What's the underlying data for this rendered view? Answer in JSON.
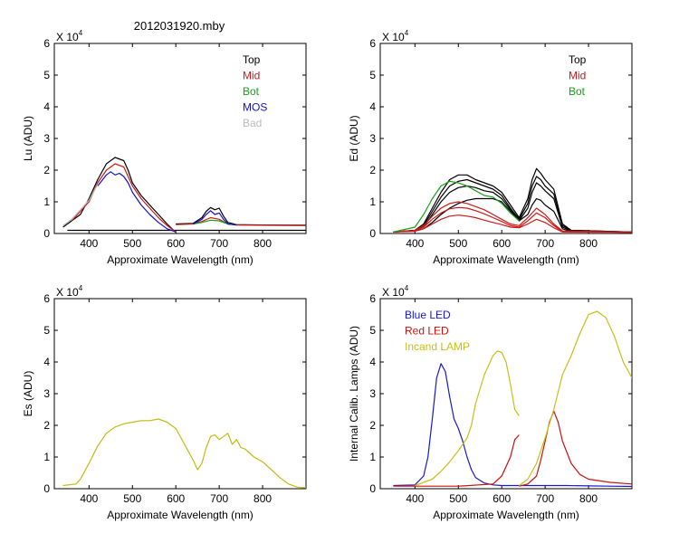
{
  "figure_title": "2012031920.mby",
  "colors": {
    "top": "#000000",
    "mid": "#cc1a1a",
    "bot": "#13a313",
    "mos": "#1111cc",
    "bad": "#bbbbbb",
    "es": "#c2bb12",
    "blue_led": "#1a1acc",
    "red_led": "#cc1111",
    "incand": "#c8c018"
  },
  "chart_data": [
    {
      "id": "lu",
      "type": "line",
      "ylabel": "Lu (ADU)",
      "xlabel": "Approximate Wavelength (nm)",
      "exponent_label": "X 10",
      "exponent": "4",
      "xlim": [
        320,
        900
      ],
      "ylim": [
        0,
        6
      ],
      "xticks": [
        "400",
        "500",
        "600",
        "700",
        "800"
      ],
      "yticks": [
        "0",
        "1",
        "2",
        "3",
        "4",
        "5",
        "6"
      ],
      "legend": [
        {
          "label": "Top",
          "key": "top"
        },
        {
          "label": "Mid",
          "key": "mid"
        },
        {
          "label": "Bot",
          "key": "bot"
        },
        {
          "label": "MOS",
          "key": "mos"
        },
        {
          "label": "Bad",
          "key": "bad"
        }
      ],
      "series": [
        {
          "name": "Top",
          "key": "top",
          "x": [
            340,
            380,
            400,
            420,
            440,
            460,
            480,
            490,
            500,
            520,
            540,
            560,
            580,
            595,
            600
          ],
          "y": [
            0.2,
            0.6,
            1.1,
            1.7,
            2.2,
            2.4,
            2.3,
            2.0,
            1.6,
            1.2,
            0.9,
            0.6,
            0.3,
            0.1,
            0.05
          ]
        },
        {
          "name": "Top",
          "key": "top",
          "x": [
            600,
            640,
            660,
            670,
            680,
            690,
            700,
            710,
            720,
            740,
            800,
            900
          ],
          "y": [
            0.3,
            0.32,
            0.5,
            0.7,
            0.82,
            0.75,
            0.8,
            0.55,
            0.35,
            0.28,
            0.27,
            0.26
          ]
        },
        {
          "name": "Top",
          "key": "top",
          "x": [
            350,
            900
          ],
          "y": [
            0.1,
            0.1
          ]
        },
        {
          "name": "Mid",
          "key": "mid",
          "x": [
            360,
            400,
            420,
            440,
            460,
            480,
            500,
            520,
            540,
            560,
            580,
            600
          ],
          "y": [
            0.4,
            1.0,
            1.6,
            2.0,
            2.2,
            2.1,
            1.5,
            1.1,
            0.8,
            0.5,
            0.25,
            0.05
          ]
        },
        {
          "name": "Mid",
          "key": "mid",
          "x": [
            600,
            640,
            660,
            680,
            700,
            720,
            740,
            800,
            900
          ],
          "y": [
            0.28,
            0.3,
            0.38,
            0.5,
            0.45,
            0.3,
            0.27,
            0.26,
            0.25
          ]
        },
        {
          "name": "Bot",
          "key": "bot",
          "x": [
            640,
            660,
            680,
            700,
            720,
            740
          ],
          "y": [
            0.3,
            0.35,
            0.42,
            0.4,
            0.3,
            0.28
          ]
        },
        {
          "name": "MOS",
          "key": "mos",
          "x": [
            420,
            440,
            450,
            460,
            470,
            480,
            490,
            500,
            520,
            540,
            560,
            580,
            600
          ],
          "y": [
            1.5,
            1.85,
            1.95,
            1.85,
            1.9,
            1.8,
            1.6,
            1.3,
            0.9,
            0.6,
            0.35,
            0.15,
            0.05
          ]
        },
        {
          "name": "MOS",
          "key": "mos",
          "x": [
            640,
            660,
            670,
            680,
            690,
            700,
            710,
            720,
            740
          ],
          "y": [
            0.3,
            0.45,
            0.6,
            0.72,
            0.6,
            0.65,
            0.45,
            0.3,
            0.27
          ]
        },
        {
          "name": "Bad",
          "key": "bad",
          "x": [
            340,
            350,
            360,
            370,
            380,
            390,
            400,
            410,
            420
          ],
          "y": [
            0.25,
            0.35,
            0.45,
            0.6,
            0.75,
            0.9,
            1.05,
            1.3,
            1.55
          ]
        }
      ]
    },
    {
      "id": "ed",
      "type": "line",
      "ylabel": "Ed (ADU)",
      "xlabel": "Approximate Wavelength (nm)",
      "exponent_label": "X 10",
      "exponent": "4",
      "xlim": [
        320,
        900
      ],
      "ylim": [
        0,
        6
      ],
      "xticks": [
        "400",
        "500",
        "600",
        "700",
        "800"
      ],
      "yticks": [
        "0",
        "1",
        "2",
        "3",
        "4",
        "5",
        "6"
      ],
      "legend": [
        {
          "label": "Top",
          "key": "top"
        },
        {
          "label": "Mid",
          "key": "mid"
        },
        {
          "label": "Bot",
          "key": "bot"
        }
      ],
      "series": [
        {
          "name": "Top",
          "key": "top",
          "x": [
            350,
            400,
            420,
            440,
            460,
            480,
            500,
            520,
            540,
            560,
            580,
            600,
            620,
            640,
            660,
            670,
            680,
            690,
            700,
            720,
            740,
            760,
            900
          ],
          "y": [
            0.05,
            0.1,
            0.3,
            0.8,
            1.3,
            1.7,
            1.85,
            1.85,
            1.7,
            1.6,
            1.5,
            1.3,
            0.9,
            0.5,
            1.1,
            1.7,
            2.05,
            1.9,
            1.7,
            1.4,
            0.3,
            0.1,
            0.05
          ]
        },
        {
          "name": "Top",
          "key": "top",
          "x": [
            350,
            400,
            420,
            440,
            460,
            480,
            500,
            520,
            540,
            560,
            580,
            600,
            620,
            640,
            660,
            670,
            680,
            690,
            700,
            720,
            740,
            760,
            900
          ],
          "y": [
            0.05,
            0.1,
            0.25,
            0.7,
            1.15,
            1.5,
            1.65,
            1.7,
            1.6,
            1.5,
            1.4,
            1.2,
            0.8,
            0.45,
            0.95,
            1.5,
            1.8,
            1.7,
            1.5,
            1.25,
            0.25,
            0.1,
            0.05
          ]
        },
        {
          "name": "Top",
          "key": "top",
          "x": [
            350,
            400,
            420,
            440,
            460,
            480,
            500,
            520,
            540,
            560,
            580,
            600,
            620,
            640,
            660,
            670,
            680,
            690,
            700,
            720,
            740,
            760,
            900
          ],
          "y": [
            0.05,
            0.1,
            0.2,
            0.6,
            1.0,
            1.3,
            1.45,
            1.5,
            1.45,
            1.35,
            1.3,
            1.1,
            0.75,
            0.4,
            0.8,
            1.3,
            1.6,
            1.5,
            1.35,
            1.1,
            0.2,
            0.08,
            0.05
          ]
        },
        {
          "name": "Top",
          "key": "top",
          "x": [
            350,
            400,
            420,
            440,
            460,
            480,
            500,
            520,
            540,
            560,
            580,
            600,
            620,
            640,
            660,
            670,
            680,
            690,
            700,
            720,
            740,
            760,
            900
          ],
          "y": [
            0.05,
            0.08,
            0.15,
            0.35,
            0.6,
            0.8,
            0.95,
            1.05,
            1.1,
            1.1,
            1.1,
            1.0,
            0.7,
            0.4,
            0.6,
            0.9,
            1.1,
            1.05,
            0.9,
            0.7,
            0.15,
            0.06,
            0.04
          ]
        },
        {
          "name": "Mid",
          "key": "mid",
          "x": [
            350,
            400,
            420,
            440,
            460,
            480,
            500,
            520,
            540,
            560,
            580,
            600,
            620,
            640,
            660,
            680,
            700,
            720,
            740,
            900
          ],
          "y": [
            0.05,
            0.1,
            0.25,
            0.55,
            0.8,
            0.95,
            1.0,
            0.95,
            0.85,
            0.75,
            0.6,
            0.45,
            0.3,
            0.25,
            0.5,
            0.8,
            0.6,
            0.3,
            0.08,
            0.05
          ]
        },
        {
          "name": "Mid",
          "key": "mid",
          "x": [
            350,
            400,
            420,
            440,
            460,
            480,
            500,
            520,
            540,
            560,
            580,
            600,
            620,
            640,
            660,
            680,
            700,
            720,
            740,
            900
          ],
          "y": [
            0.05,
            0.08,
            0.2,
            0.45,
            0.65,
            0.78,
            0.82,
            0.8,
            0.72,
            0.62,
            0.5,
            0.38,
            0.25,
            0.2,
            0.4,
            0.65,
            0.5,
            0.25,
            0.06,
            0.04
          ]
        },
        {
          "name": "Mid",
          "key": "mid",
          "x": [
            350,
            400,
            420,
            440,
            460,
            480,
            500,
            520,
            540,
            560,
            580,
            600,
            620,
            640,
            660,
            680,
            700,
            720,
            740,
            900
          ],
          "y": [
            0.05,
            0.07,
            0.15,
            0.3,
            0.45,
            0.55,
            0.58,
            0.55,
            0.5,
            0.42,
            0.35,
            0.28,
            0.2,
            0.18,
            0.3,
            0.45,
            0.35,
            0.18,
            0.05,
            0.04
          ]
        },
        {
          "name": "Bot",
          "key": "bot",
          "x": [
            350,
            400,
            420,
            440,
            460,
            480,
            500,
            520,
            540,
            560,
            580,
            600,
            620,
            640
          ],
          "y": [
            0.05,
            0.2,
            0.6,
            1.1,
            1.5,
            1.65,
            1.6,
            1.5,
            1.35,
            1.2,
            1.15,
            0.95,
            0.65,
            0.4
          ]
        }
      ]
    },
    {
      "id": "es",
      "type": "line",
      "ylabel": "Es (ADU)",
      "xlabel": "Approximate Wavelength (nm)",
      "exponent_label": "X 10",
      "exponent": "4",
      "xlim": [
        320,
        900
      ],
      "ylim": [
        0,
        6
      ],
      "xticks": [
        "400",
        "500",
        "600",
        "700",
        "800"
      ],
      "yticks": [
        "0",
        "1",
        "2",
        "3",
        "4",
        "5",
        "6"
      ],
      "legend": [],
      "series": [
        {
          "name": "Es",
          "key": "es",
          "x": [
            340,
            370,
            380,
            400,
            420,
            440,
            460,
            480,
            500,
            520,
            540,
            560,
            580,
            600,
            620,
            640,
            650,
            660,
            670,
            680,
            690,
            700,
            710,
            720,
            730,
            740,
            750,
            760,
            780,
            800,
            820,
            840,
            860,
            880,
            900
          ],
          "y": [
            0.1,
            0.15,
            0.3,
            0.8,
            1.35,
            1.75,
            1.95,
            2.05,
            2.1,
            2.15,
            2.15,
            2.2,
            2.1,
            1.9,
            1.4,
            0.9,
            0.6,
            0.8,
            1.3,
            1.65,
            1.7,
            1.55,
            1.65,
            1.75,
            1.4,
            1.55,
            1.3,
            1.25,
            1.0,
            0.85,
            0.6,
            0.35,
            0.15,
            0.05,
            0.03
          ]
        }
      ]
    },
    {
      "id": "lamps",
      "type": "line",
      "ylabel": "Internal Calib. Lamps (ADU)",
      "xlabel": "Approximate Wavelength (nm)",
      "exponent_label": "X 10",
      "exponent": "4",
      "xlim": [
        320,
        900
      ],
      "ylim": [
        0,
        6
      ],
      "xticks": [
        "400",
        "500",
        "600",
        "700",
        "800"
      ],
      "yticks": [
        "0",
        "1",
        "2",
        "3",
        "4",
        "5",
        "6"
      ],
      "legend": [
        {
          "label": "Blue LED",
          "key": "blue_led"
        },
        {
          "label": "Red LED",
          "key": "red_led"
        },
        {
          "label": "Incand LAMP",
          "key": "incand"
        }
      ],
      "series": [
        {
          "name": "Blue LED",
          "key": "blue_led",
          "x": [
            350,
            400,
            420,
            430,
            440,
            450,
            460,
            470,
            480,
            490,
            500,
            510,
            520,
            530,
            540,
            560,
            580,
            600,
            650,
            700,
            750,
            800,
            850,
            900
          ],
          "y": [
            0.1,
            0.12,
            0.4,
            1.0,
            2.2,
            3.5,
            3.95,
            3.7,
            2.9,
            2.2,
            1.9,
            1.5,
            1.0,
            0.6,
            0.35,
            0.18,
            0.12,
            0.1,
            0.1,
            0.1,
            0.1,
            0.09,
            0.08,
            0.07
          ]
        },
        {
          "name": "Red LED",
          "key": "red_led",
          "x": [
            350,
            500,
            580,
            600,
            610,
            620,
            630,
            640
          ],
          "y": [
            0.08,
            0.08,
            0.15,
            0.4,
            0.7,
            1.0,
            1.55,
            1.7
          ]
        },
        {
          "name": "Red LED",
          "key": "red_led",
          "x": [
            640,
            660,
            680,
            690,
            700,
            710,
            720,
            730,
            740,
            760,
            780,
            800,
            850,
            900
          ],
          "y": [
            0.08,
            0.15,
            0.4,
            0.9,
            1.5,
            2.1,
            2.45,
            2.1,
            1.5,
            0.8,
            0.45,
            0.3,
            0.2,
            0.15
          ]
        },
        {
          "name": "Incand LAMP",
          "key": "incand",
          "x": [
            400,
            440,
            460,
            480,
            500,
            510,
            520,
            530,
            540,
            560,
            580,
            590,
            600,
            610,
            620,
            630,
            640
          ],
          "y": [
            0.1,
            0.3,
            0.55,
            0.85,
            1.2,
            1.4,
            1.6,
            2.0,
            2.7,
            3.6,
            4.2,
            4.35,
            4.3,
            4.0,
            3.3,
            2.5,
            2.3
          ]
        },
        {
          "name": "Incand LAMP",
          "key": "incand",
          "x": [
            640,
            660,
            680,
            700,
            720,
            740,
            760,
            780,
            800,
            820,
            840,
            860,
            880,
            900
          ],
          "y": [
            0.1,
            0.3,
            0.8,
            1.6,
            2.5,
            3.6,
            4.2,
            4.9,
            5.5,
            5.6,
            5.4,
            4.8,
            4.0,
            3.5
          ]
        }
      ]
    }
  ]
}
